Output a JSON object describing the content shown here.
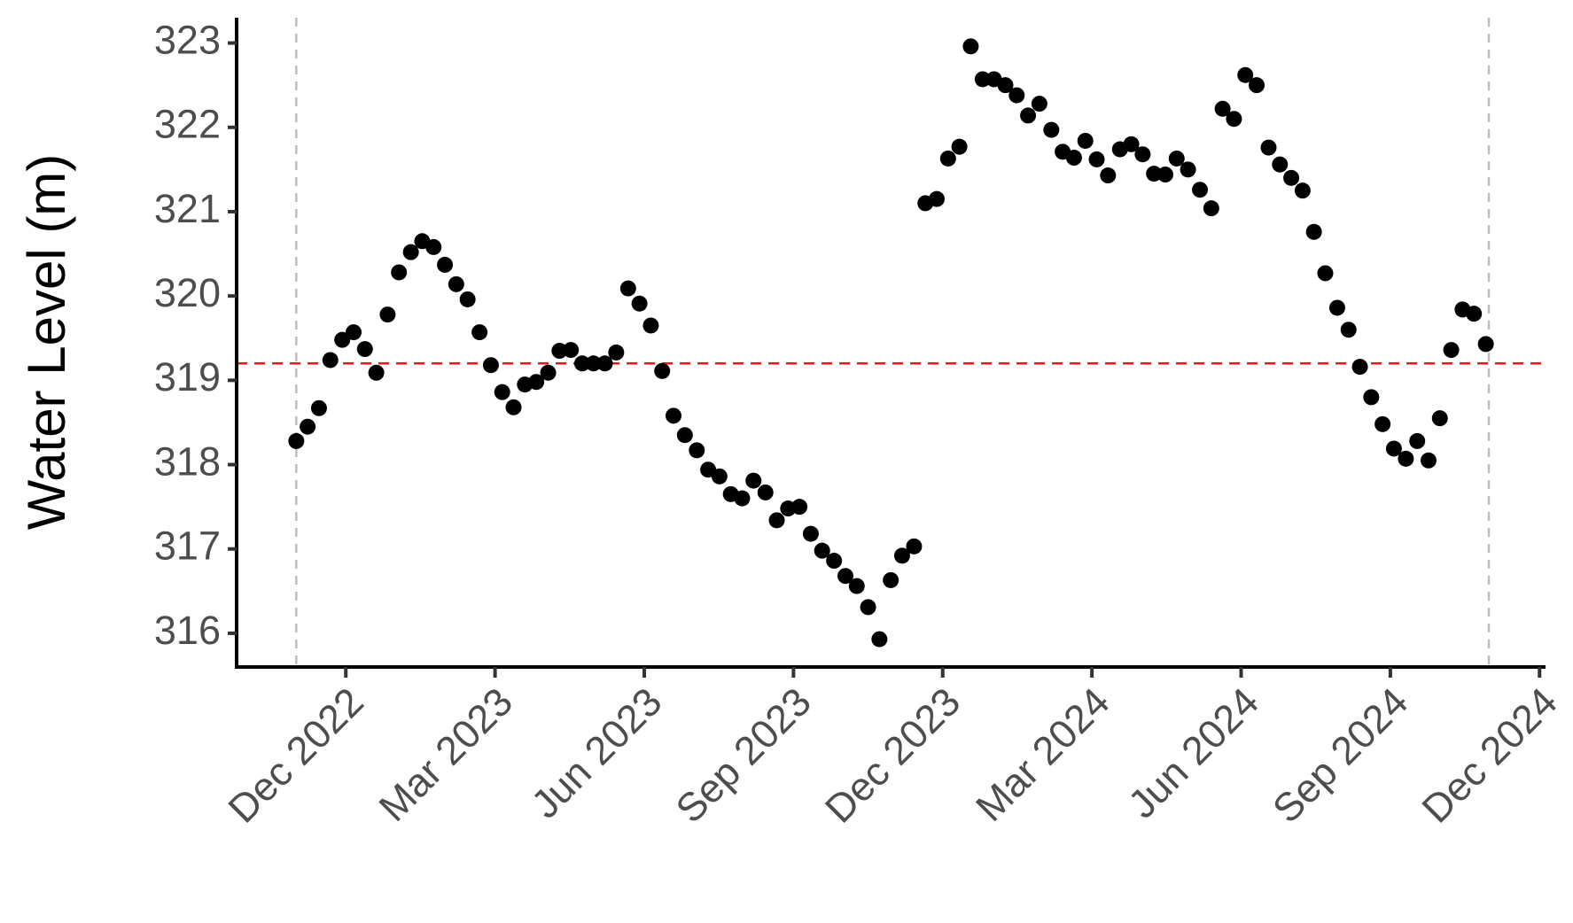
{
  "chart_data": {
    "type": "scatter",
    "ylabel": "Water Level (m)",
    "color": "#000000",
    "x": [
      2022.834,
      2022.853,
      2022.872,
      2022.891,
      2022.911,
      2022.93,
      2022.949,
      2022.968,
      2022.987,
      2023.006,
      2023.026,
      2023.045,
      2023.064,
      2023.083,
      2023.102,
      2023.121,
      2023.141,
      2023.16,
      2023.179,
      2023.198,
      2023.217,
      2023.236,
      2023.256,
      2023.275,
      2023.294,
      2023.313,
      2023.332,
      2023.351,
      2023.37,
      2023.39,
      2023.409,
      2023.428,
      2023.447,
      2023.466,
      2023.485,
      2023.505,
      2023.524,
      2023.543,
      2023.562,
      2023.581,
      2023.6,
      2023.62,
      2023.639,
      2023.658,
      2023.677,
      2023.696,
      2023.715,
      2023.735,
      2023.754,
      2023.773,
      2023.792,
      2023.811,
      2023.83,
      2023.849,
      2023.869,
      2023.888,
      2023.907,
      2023.926,
      2023.945,
      2023.964,
      2023.984,
      2024.003,
      2024.022,
      2024.041,
      2024.06,
      2024.079,
      2024.099,
      2024.118,
      2024.137,
      2024.156,
      2024.175,
      2024.194,
      2024.214,
      2024.233,
      2024.252,
      2024.271,
      2024.29,
      2024.309,
      2024.328,
      2024.348,
      2024.367,
      2024.386,
      2024.405,
      2024.424,
      2024.443,
      2024.463,
      2024.482,
      2024.501,
      2024.52,
      2024.539,
      2024.558,
      2024.578,
      2024.597,
      2024.616,
      2024.635,
      2024.654,
      2024.673,
      2024.693,
      2024.712,
      2024.731,
      2024.75,
      2024.769,
      2024.788,
      2024.807,
      2024.827
    ],
    "values": [
      318.28,
      318.45,
      318.67,
      319.24,
      319.48,
      319.57,
      319.37,
      319.09,
      319.78,
      320.28,
      320.52,
      320.65,
      320.58,
      320.37,
      320.14,
      319.96,
      319.57,
      319.18,
      318.86,
      318.68,
      318.95,
      318.98,
      319.09,
      319.35,
      319.36,
      319.2,
      319.2,
      319.2,
      319.33,
      320.09,
      319.91,
      319.65,
      319.11,
      318.58,
      318.35,
      318.17,
      317.94,
      317.86,
      317.65,
      317.6,
      317.81,
      317.67,
      317.34,
      317.48,
      317.5,
      317.18,
      316.98,
      316.86,
      316.68,
      316.56,
      316.31,
      315.93,
      316.63,
      316.92,
      317.03,
      321.1,
      321.15,
      321.63,
      321.77,
      322.96,
      322.57,
      322.57,
      322.5,
      322.38,
      322.14,
      322.28,
      321.97,
      321.71,
      321.64,
      321.84,
      321.62,
      321.43,
      321.74,
      321.8,
      321.68,
      321.45,
      321.44,
      321.63,
      321.5,
      321.26,
      321.04,
      322.22,
      322.1,
      322.62,
      322.5,
      321.76,
      321.56,
      321.4,
      321.25,
      320.76,
      320.27,
      319.86,
      319.6,
      319.16,
      318.8,
      318.48,
      318.19,
      318.07,
      318.28,
      318.05,
      318.55,
      319.36,
      319.84,
      319.79,
      319.43
    ],
    "xlim": [
      2022.734,
      2024.927
    ],
    "xticks": [
      {
        "value": 2022.917,
        "label": "Dec 2022"
      },
      {
        "value": 2023.167,
        "label": "Mar 2023"
      },
      {
        "value": 2023.417,
        "label": "Jun 2023"
      },
      {
        "value": 2023.667,
        "label": "Sep 2023"
      },
      {
        "value": 2023.917,
        "label": "Dec 2023"
      },
      {
        "value": 2024.167,
        "label": "Mar 2024"
      },
      {
        "value": 2024.417,
        "label": "Jun 2024"
      },
      {
        "value": 2024.667,
        "label": "Sep 2024"
      },
      {
        "value": 2024.917,
        "label": "Dec 2024"
      }
    ],
    "ylim": [
      315.6,
      323.3
    ],
    "yticks": [
      316,
      317,
      318,
      319,
      320,
      321,
      322,
      323
    ],
    "vlines": [
      2022.834,
      2024.832
    ],
    "vline_color": "#bebebe",
    "hline": 319.2,
    "hline_color": "#e31a1c"
  }
}
